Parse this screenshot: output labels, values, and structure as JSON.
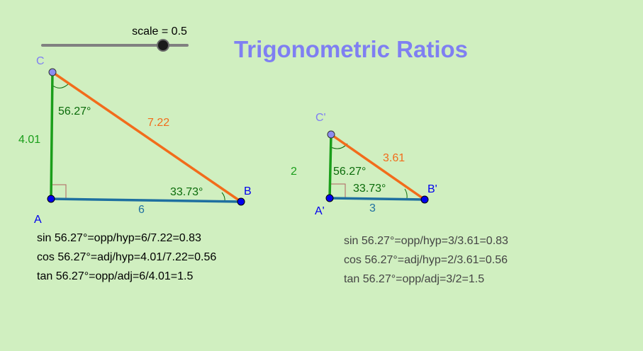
{
  "title": "Trigonometric Ratios",
  "slider": {
    "label": "scale = 0.5",
    "value": 0.5,
    "min": 0,
    "max": 0.6
  },
  "colors": {
    "background": "#d0efc0",
    "title": "#7f7ff2",
    "hypotenuse": "#f26c1b",
    "adjacent": "#1e6fa0",
    "opposite": "#1a9e1a",
    "angle": "#0a6b0a",
    "vertex_C": "#7f7ff2",
    "vertex_AB": "#0000ee",
    "text_big": "#000000",
    "text_small": "#444444"
  },
  "big_triangle": {
    "vertices": {
      "A": "A",
      "B": "B",
      "C": "C"
    },
    "sides": {
      "opposite": "4.01",
      "adjacent": "6",
      "hypotenuse": "7.22"
    },
    "angles": {
      "at_C": "56.27°",
      "at_B": "33.73°"
    },
    "ratios": [
      "sin 56.27°=opp/hyp=6/7.22=0.83",
      "cos 56.27°=adj/hyp=4.01/7.22=0.56",
      "tan 56.27°=opp/adj=6/4.01=1.5"
    ]
  },
  "small_triangle": {
    "vertices": {
      "A": "A'",
      "B": "B'",
      "C": "C'"
    },
    "sides": {
      "opposite": "2",
      "adjacent": "3",
      "hypotenuse": "3.61"
    },
    "angles": {
      "at_C": "56.27°",
      "at_B": "33.73°"
    },
    "ratios": [
      "sin 56.27°=opp/hyp=3/3.61=0.83",
      "cos 56.27°=adj/hyp=2/3.61=0.56",
      "tan 56.27°=opp/adj=3/2=1.5"
    ]
  }
}
